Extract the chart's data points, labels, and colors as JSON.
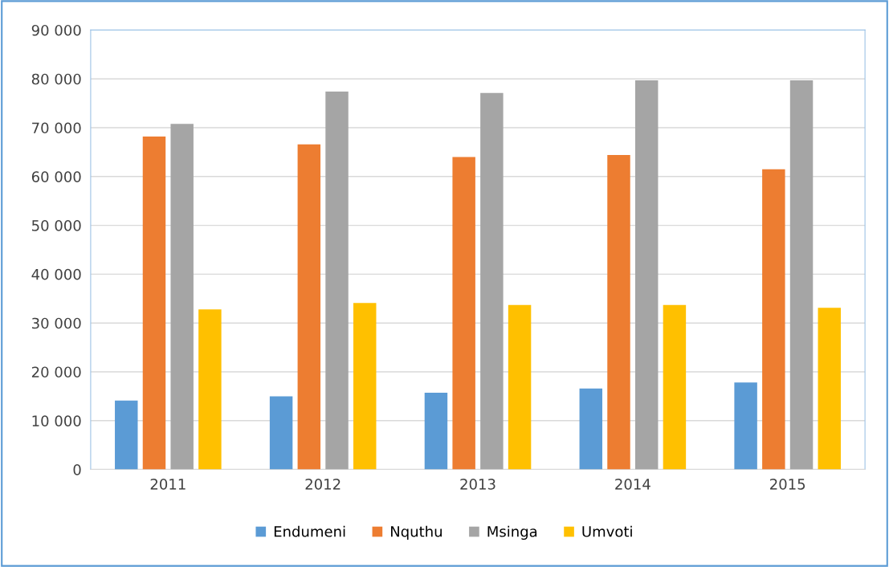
{
  "chart_data": {
    "type": "bar",
    "categories": [
      "2011",
      "2012",
      "2013",
      "2014",
      "2015"
    ],
    "series": [
      {
        "name": "Endumeni",
        "color": "#5b9bd5",
        "values": [
          14100,
          15000,
          15700,
          16600,
          17800
        ]
      },
      {
        "name": "Nquthu",
        "color": "#ed7d31",
        "values": [
          68200,
          66600,
          64000,
          64400,
          61500
        ]
      },
      {
        "name": "Msinga",
        "color": "#a5a5a5",
        "values": [
          70800,
          77400,
          77100,
          79700,
          79700
        ]
      },
      {
        "name": "Umvoti",
        "color": "#ffc000",
        "values": [
          32800,
          34100,
          33700,
          33700,
          33100
        ]
      }
    ],
    "ylim": [
      0,
      90000
    ],
    "yticks": [
      0,
      {
        "value": 10000,
        "label": "10 000"
      },
      {
        "value": 20000,
        "label": "20 000"
      },
      {
        "value": 30000,
        "label": "30 000"
      },
      {
        "value": 40000,
        "label": "40 000"
      },
      {
        "value": 50000,
        "label": "50 000"
      },
      {
        "value": 60000,
        "label": "60 000"
      },
      {
        "value": 70000,
        "label": "70 000"
      },
      {
        "value": 80000,
        "label": "80 000"
      },
      {
        "value": 90000,
        "label": "90 000"
      }
    ],
    "grid": "y",
    "legend": "bottom"
  }
}
